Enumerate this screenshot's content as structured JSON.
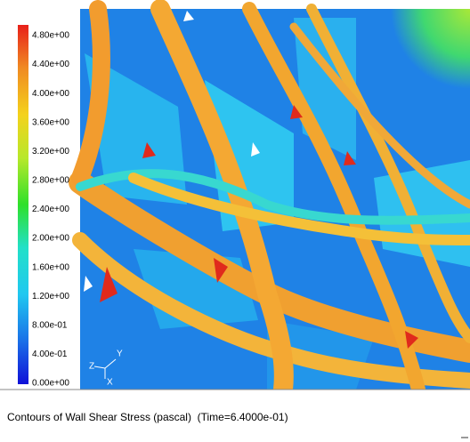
{
  "colorbar": {
    "labels": [
      "4.80e+00",
      "4.40e+00",
      "4.00e+00",
      "3.60e+00",
      "3.20e+00",
      "2.80e+00",
      "2.40e+00",
      "2.00e+00",
      "1.60e+00",
      "1.20e+00",
      "8.00e-01",
      "4.00e-01",
      "0.00e+00"
    ]
  },
  "triad": {
    "z": "Z",
    "y": "Y",
    "x": "X"
  },
  "caption": "Contours of Wall Shear Stress (pascal)  (Time=6.4000e-01)"
}
